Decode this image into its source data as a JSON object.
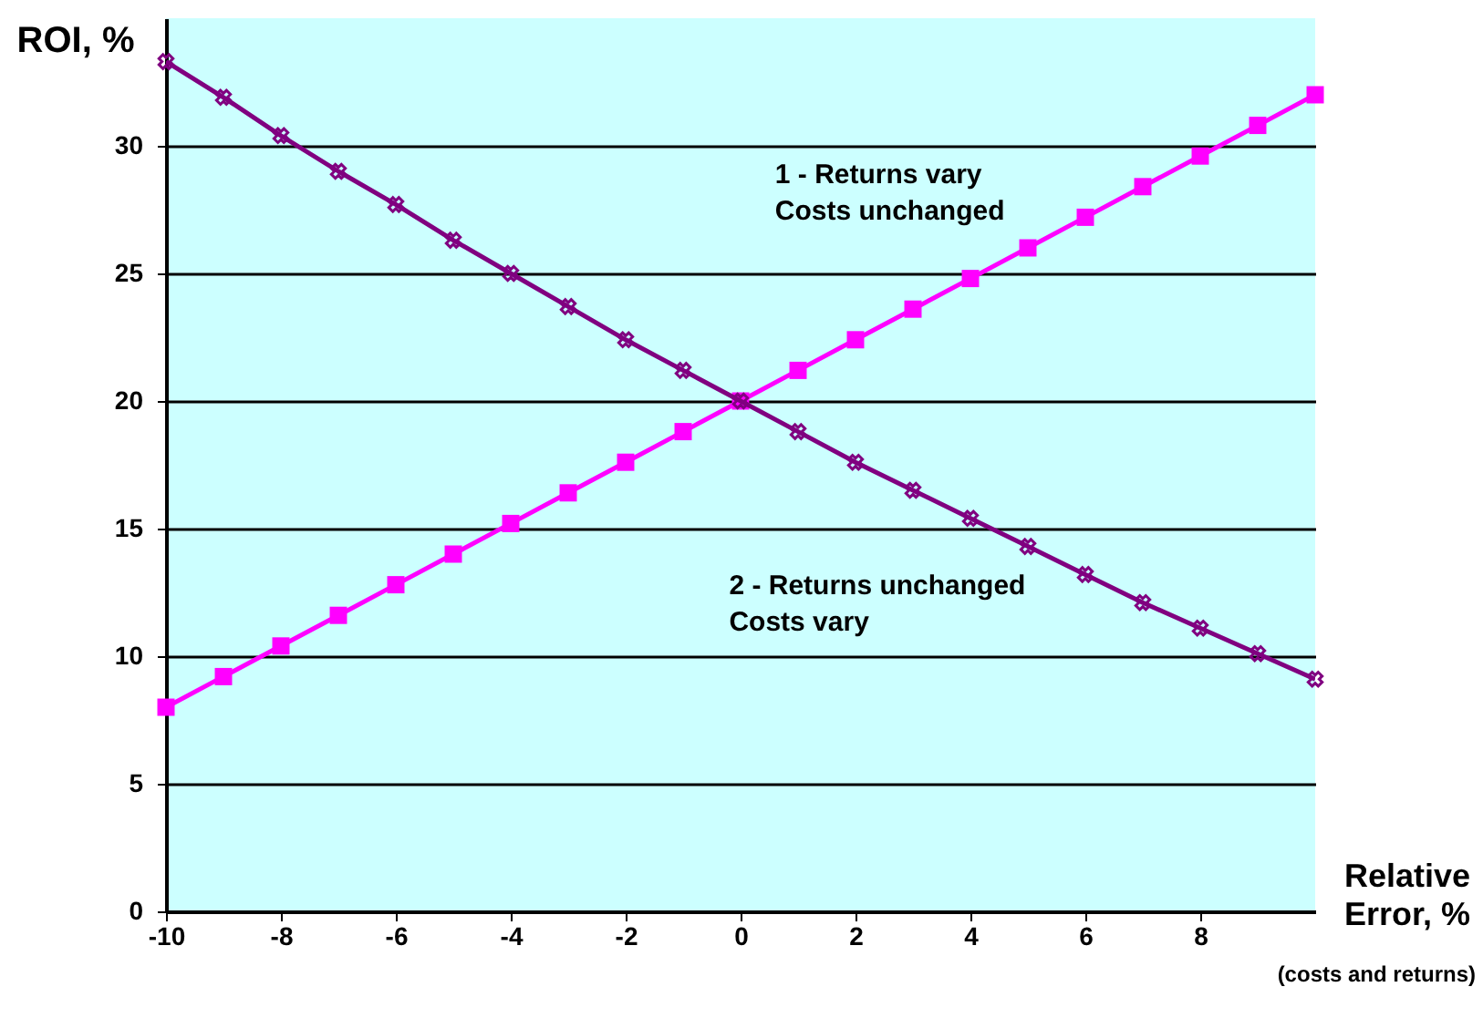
{
  "chart_data": {
    "type": "line",
    "xlabel": "Relative Error, %",
    "ylabel": "ROI, %",
    "x": [
      -10,
      -9,
      -8,
      -7,
      -6,
      -5,
      -4,
      -3,
      -2,
      -1,
      0,
      1,
      2,
      3,
      4,
      5,
      6,
      7,
      8,
      9,
      10
    ],
    "series": [
      {
        "color": "#ff00ff",
        "marker": "square",
        "values": [
          8,
          9.2,
          10.4,
          11.6,
          12.8,
          14,
          15.2,
          16.4,
          17.6,
          18.8,
          20,
          21.2,
          22.4,
          23.6,
          24.8,
          26,
          27.2,
          28.4,
          29.6,
          30.8,
          32
        ]
      },
      {
        "color": "#800080",
        "marker": "cross",
        "values": [
          33.3,
          31.9,
          30.4,
          29.0,
          27.7,
          26.3,
          25.0,
          23.7,
          22.4,
          21.2,
          20,
          18.8,
          17.6,
          16.5,
          15.4,
          14.3,
          13.2,
          12.1,
          11.1,
          10.1,
          9.1
        ]
      }
    ],
    "annotations": [
      "1 - Returns vary\nCosts unchanged",
      "2 - Returns unchanged\nCosts vary",
      "(costs and returns)"
    ],
    "xlim": [
      -10,
      10
    ],
    "xticks": [
      -10,
      -8,
      -6,
      -4,
      -2,
      0,
      2,
      4,
      6,
      8
    ],
    "ylim": [
      0,
      35
    ],
    "yticks": [
      0,
      5,
      10,
      15,
      20,
      25,
      30
    ],
    "grid": "y",
    "line_style": "solid"
  }
}
